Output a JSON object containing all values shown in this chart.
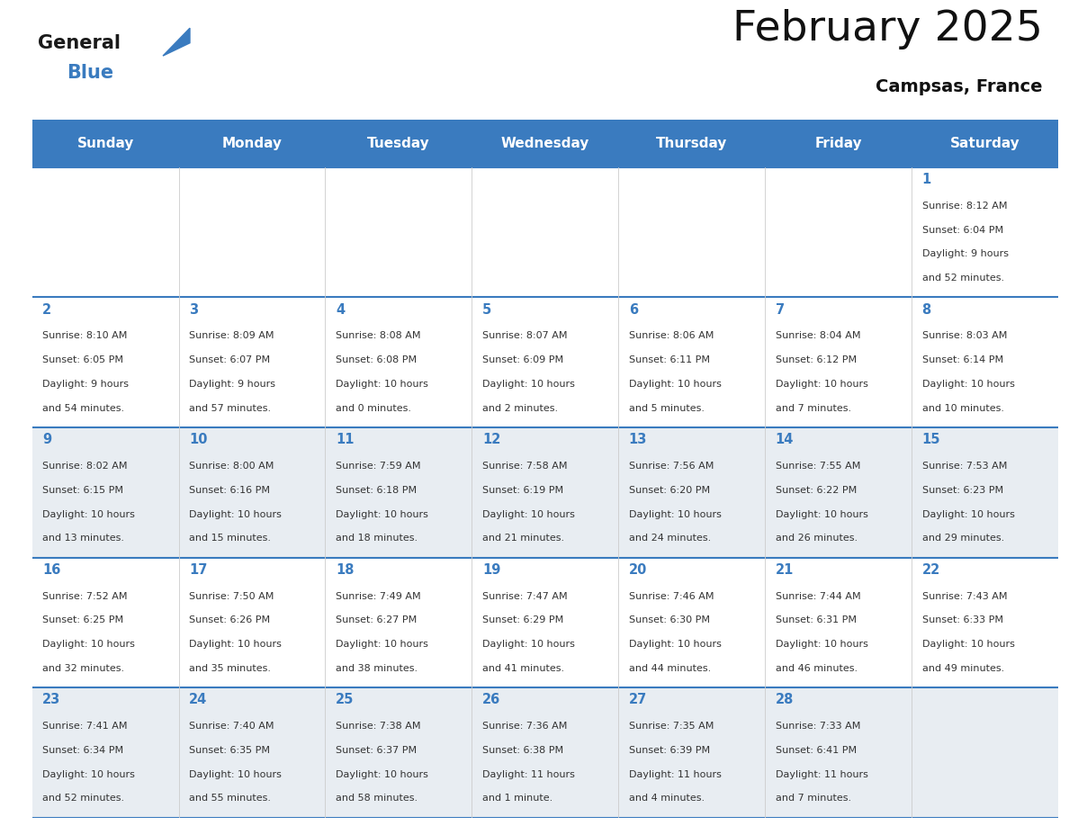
{
  "title": "February 2025",
  "subtitle": "Campsas, France",
  "header_color": "#3a7bbf",
  "header_text_color": "#ffffff",
  "day_names": [
    "Sunday",
    "Monday",
    "Tuesday",
    "Wednesday",
    "Thursday",
    "Friday",
    "Saturday"
  ],
  "bg_color": "#ffffff",
  "row_bg_alt": "#e8edf2",
  "grid_color": "#3a7bbf",
  "day_num_color": "#3a7bbf",
  "text_color": "#333333",
  "logo_general_color": "#1a1a1a",
  "logo_blue_color": "#3a7bbf",
  "days": [
    {
      "day": 1,
      "col": 6,
      "row": 0,
      "sunrise": "8:12 AM",
      "sunset": "6:04 PM",
      "daylight": "9 hours",
      "daylight2": "and 52 minutes."
    },
    {
      "day": 2,
      "col": 0,
      "row": 1,
      "sunrise": "8:10 AM",
      "sunset": "6:05 PM",
      "daylight": "9 hours",
      "daylight2": "and 54 minutes."
    },
    {
      "day": 3,
      "col": 1,
      "row": 1,
      "sunrise": "8:09 AM",
      "sunset": "6:07 PM",
      "daylight": "9 hours",
      "daylight2": "and 57 minutes."
    },
    {
      "day": 4,
      "col": 2,
      "row": 1,
      "sunrise": "8:08 AM",
      "sunset": "6:08 PM",
      "daylight": "10 hours",
      "daylight2": "and 0 minutes."
    },
    {
      "day": 5,
      "col": 3,
      "row": 1,
      "sunrise": "8:07 AM",
      "sunset": "6:09 PM",
      "daylight": "10 hours",
      "daylight2": "and 2 minutes."
    },
    {
      "day": 6,
      "col": 4,
      "row": 1,
      "sunrise": "8:06 AM",
      "sunset": "6:11 PM",
      "daylight": "10 hours",
      "daylight2": "and 5 minutes."
    },
    {
      "day": 7,
      "col": 5,
      "row": 1,
      "sunrise": "8:04 AM",
      "sunset": "6:12 PM",
      "daylight": "10 hours",
      "daylight2": "and 7 minutes."
    },
    {
      "day": 8,
      "col": 6,
      "row": 1,
      "sunrise": "8:03 AM",
      "sunset": "6:14 PM",
      "daylight": "10 hours",
      "daylight2": "and 10 minutes."
    },
    {
      "day": 9,
      "col": 0,
      "row": 2,
      "sunrise": "8:02 AM",
      "sunset": "6:15 PM",
      "daylight": "10 hours",
      "daylight2": "and 13 minutes."
    },
    {
      "day": 10,
      "col": 1,
      "row": 2,
      "sunrise": "8:00 AM",
      "sunset": "6:16 PM",
      "daylight": "10 hours",
      "daylight2": "and 15 minutes."
    },
    {
      "day": 11,
      "col": 2,
      "row": 2,
      "sunrise": "7:59 AM",
      "sunset": "6:18 PM",
      "daylight": "10 hours",
      "daylight2": "and 18 minutes."
    },
    {
      "day": 12,
      "col": 3,
      "row": 2,
      "sunrise": "7:58 AM",
      "sunset": "6:19 PM",
      "daylight": "10 hours",
      "daylight2": "and 21 minutes."
    },
    {
      "day": 13,
      "col": 4,
      "row": 2,
      "sunrise": "7:56 AM",
      "sunset": "6:20 PM",
      "daylight": "10 hours",
      "daylight2": "and 24 minutes."
    },
    {
      "day": 14,
      "col": 5,
      "row": 2,
      "sunrise": "7:55 AM",
      "sunset": "6:22 PM",
      "daylight": "10 hours",
      "daylight2": "and 26 minutes."
    },
    {
      "day": 15,
      "col": 6,
      "row": 2,
      "sunrise": "7:53 AM",
      "sunset": "6:23 PM",
      "daylight": "10 hours",
      "daylight2": "and 29 minutes."
    },
    {
      "day": 16,
      "col": 0,
      "row": 3,
      "sunrise": "7:52 AM",
      "sunset": "6:25 PM",
      "daylight": "10 hours",
      "daylight2": "and 32 minutes."
    },
    {
      "day": 17,
      "col": 1,
      "row": 3,
      "sunrise": "7:50 AM",
      "sunset": "6:26 PM",
      "daylight": "10 hours",
      "daylight2": "and 35 minutes."
    },
    {
      "day": 18,
      "col": 2,
      "row": 3,
      "sunrise": "7:49 AM",
      "sunset": "6:27 PM",
      "daylight": "10 hours",
      "daylight2": "and 38 minutes."
    },
    {
      "day": 19,
      "col": 3,
      "row": 3,
      "sunrise": "7:47 AM",
      "sunset": "6:29 PM",
      "daylight": "10 hours",
      "daylight2": "and 41 minutes."
    },
    {
      "day": 20,
      "col": 4,
      "row": 3,
      "sunrise": "7:46 AM",
      "sunset": "6:30 PM",
      "daylight": "10 hours",
      "daylight2": "and 44 minutes."
    },
    {
      "day": 21,
      "col": 5,
      "row": 3,
      "sunrise": "7:44 AM",
      "sunset": "6:31 PM",
      "daylight": "10 hours",
      "daylight2": "and 46 minutes."
    },
    {
      "day": 22,
      "col": 6,
      "row": 3,
      "sunrise": "7:43 AM",
      "sunset": "6:33 PM",
      "daylight": "10 hours",
      "daylight2": "and 49 minutes."
    },
    {
      "day": 23,
      "col": 0,
      "row": 4,
      "sunrise": "7:41 AM",
      "sunset": "6:34 PM",
      "daylight": "10 hours",
      "daylight2": "and 52 minutes."
    },
    {
      "day": 24,
      "col": 1,
      "row": 4,
      "sunrise": "7:40 AM",
      "sunset": "6:35 PM",
      "daylight": "10 hours",
      "daylight2": "and 55 minutes."
    },
    {
      "day": 25,
      "col": 2,
      "row": 4,
      "sunrise": "7:38 AM",
      "sunset": "6:37 PM",
      "daylight": "10 hours",
      "daylight2": "and 58 minutes."
    },
    {
      "day": 26,
      "col": 3,
      "row": 4,
      "sunrise": "7:36 AM",
      "sunset": "6:38 PM",
      "daylight": "11 hours",
      "daylight2": "and 1 minute."
    },
    {
      "day": 27,
      "col": 4,
      "row": 4,
      "sunrise": "7:35 AM",
      "sunset": "6:39 PM",
      "daylight": "11 hours",
      "daylight2": "and 4 minutes."
    },
    {
      "day": 28,
      "col": 5,
      "row": 4,
      "sunrise": "7:33 AM",
      "sunset": "6:41 PM",
      "daylight": "11 hours",
      "daylight2": "and 7 minutes."
    }
  ]
}
